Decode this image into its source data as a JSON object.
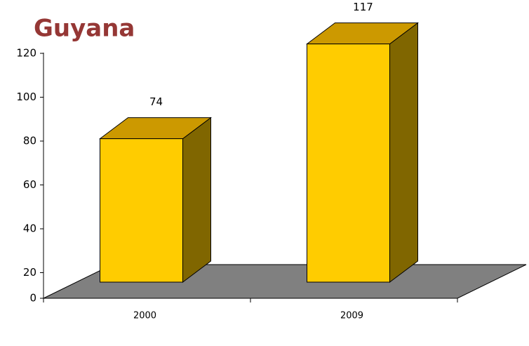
{
  "chart_data": {
    "type": "bar3d",
    "title": "Guyana",
    "categories": [
      "2000",
      "2009"
    ],
    "values": [
      74,
      117
    ],
    "color": "#FFCC00",
    "ylim": [
      0,
      120
    ],
    "yticks": [
      0,
      20,
      40,
      60,
      80,
      100,
      120
    ]
  }
}
